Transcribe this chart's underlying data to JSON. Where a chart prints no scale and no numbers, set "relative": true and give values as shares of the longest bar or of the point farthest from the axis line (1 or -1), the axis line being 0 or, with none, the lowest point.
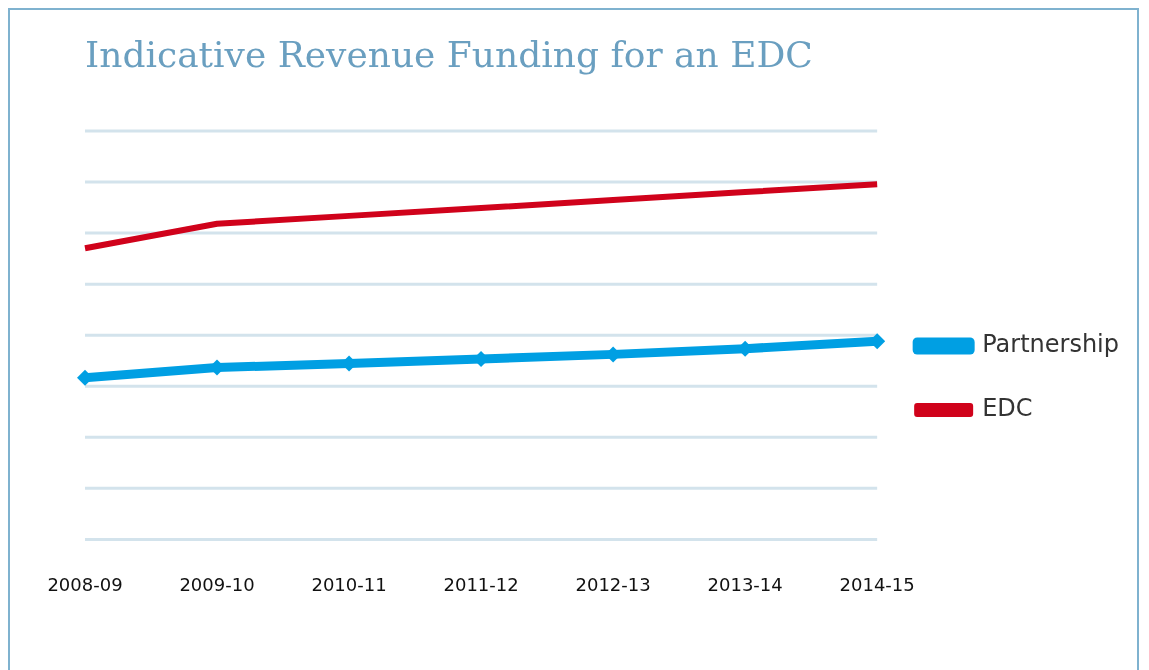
{
  "chart_data": {
    "type": "line",
    "title": "Indicative Revenue Funding for an EDC",
    "relative": true,
    "grid": "y",
    "legend": "right",
    "categories": [
      "2008-09",
      "2009-10",
      "2010-11",
      "2011-12",
      "2012-13",
      "2013-14",
      "2014-15"
    ],
    "series": [
      {
        "name": "Partnership",
        "color": "#009fe3",
        "marker": "diamond",
        "values": [
          0.455,
          0.484,
          0.495,
          0.508,
          0.521,
          0.537,
          0.558
        ]
      },
      {
        "name": "EDC",
        "color": "#d0021b",
        "marker": "none",
        "values": [
          0.82,
          0.889,
          0.911,
          0.933,
          0.956,
          0.978,
          1.0
        ]
      }
    ]
  }
}
